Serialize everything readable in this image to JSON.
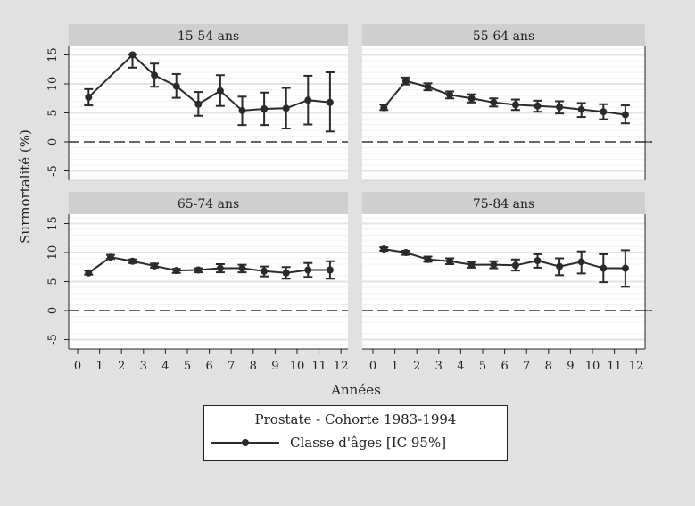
{
  "chart_data": {
    "type": "line",
    "subtype": "line-with-error-bars (small multiples)",
    "xlabel": "Années",
    "ylabel": "Surmortalité (%)",
    "x_ticks": [
      0,
      1,
      2,
      3,
      4,
      5,
      6,
      7,
      8,
      9,
      10,
      11,
      12
    ],
    "y_ticks": [
      -5,
      0,
      5,
      10,
      15
    ],
    "xlim": [
      -0.4,
      12.4
    ],
    "ylim": [
      -6.5,
      16.5
    ],
    "reference_line": {
      "y": 0,
      "style": "dashed"
    },
    "grid": true,
    "legend": {
      "title": "Prostate - Cohorte 1983-1994",
      "entries": [
        "Classe d'âges [IC 95%]"
      ],
      "placement": "bottom-center"
    },
    "panels": [
      {
        "title": "15-54 ans",
        "x": [
          0.5,
          2.5,
          3.5,
          4.5,
          5.5,
          6.5,
          7.5,
          8.5,
          9.5,
          10.5,
          11.5
        ],
        "y": [
          7.7,
          15.0,
          11.5,
          9.6,
          6.5,
          8.8,
          5.4,
          5.7,
          5.8,
          7.2,
          6.8
        ],
        "lower": [
          6.3,
          12.8,
          9.5,
          7.6,
          4.5,
          6.2,
          2.9,
          2.9,
          2.3,
          3.0,
          1.8
        ],
        "upper": [
          9.1,
          15.1,
          13.5,
          11.7,
          8.6,
          11.5,
          7.8,
          8.5,
          9.3,
          11.4,
          12.0
        ]
      },
      {
        "title": "55-64 ans",
        "x": [
          0.5,
          1.5,
          2.5,
          3.5,
          4.5,
          5.5,
          6.5,
          7.5,
          8.5,
          9.5,
          10.5,
          11.5
        ],
        "y": [
          5.9,
          10.5,
          9.5,
          8.1,
          7.5,
          6.8,
          6.4,
          6.2,
          6.0,
          5.6,
          5.2,
          4.7
        ],
        "lower": [
          5.5,
          9.9,
          8.9,
          7.5,
          6.8,
          6.1,
          5.5,
          5.2,
          4.9,
          4.3,
          3.9,
          3.2
        ],
        "upper": [
          6.4,
          11.1,
          10.1,
          8.7,
          8.2,
          7.5,
          7.3,
          7.1,
          7.0,
          6.7,
          6.5,
          6.3
        ]
      },
      {
        "title": "65-74 ans",
        "x": [
          0.5,
          1.5,
          2.5,
          3.5,
          4.5,
          5.5,
          6.5,
          7.5,
          8.5,
          9.5,
          10.5,
          11.5
        ],
        "y": [
          6.5,
          9.2,
          8.5,
          7.7,
          6.9,
          7.0,
          7.3,
          7.3,
          6.8,
          6.5,
          7.0,
          7.0
        ],
        "lower": [
          6.2,
          8.9,
          8.2,
          7.4,
          6.5,
          6.6,
          6.6,
          6.6,
          5.9,
          5.5,
          5.8,
          5.5
        ],
        "upper": [
          6.9,
          9.6,
          8.8,
          8.1,
          7.2,
          7.3,
          8.0,
          7.9,
          7.6,
          7.5,
          8.2,
          8.5
        ]
      },
      {
        "title": "75-84 ans",
        "x": [
          0.5,
          1.5,
          2.5,
          3.5,
          4.5,
          5.5,
          6.5,
          7.5,
          8.5,
          9.5,
          10.5,
          11.5
        ],
        "y": [
          10.6,
          10.0,
          8.8,
          8.5,
          7.9,
          7.9,
          7.8,
          8.6,
          7.6,
          8.4,
          7.3,
          7.3
        ],
        "lower": [
          10.3,
          9.6,
          8.4,
          8.0,
          7.4,
          7.3,
          6.9,
          7.4,
          6.1,
          6.4,
          4.9,
          4.1
        ],
        "upper": [
          10.9,
          10.3,
          9.3,
          9.0,
          8.4,
          8.5,
          8.8,
          9.7,
          9.0,
          10.2,
          9.7,
          10.4
        ]
      }
    ]
  },
  "colors": {
    "background": "#e1e1e1",
    "plot_background": "#ffffff",
    "strip_background": "#cfcfcf",
    "gridline": "#e4e4e4",
    "series": "#2a2a2a"
  }
}
